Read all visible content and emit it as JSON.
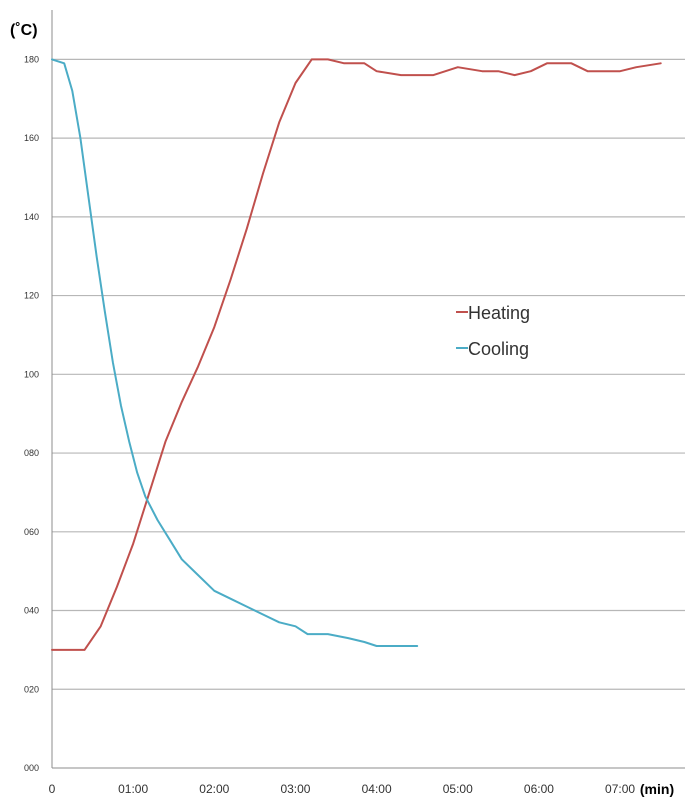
{
  "chart_data": {
    "type": "line",
    "y_unit_label": "(˚C)",
    "x_unit_label": "(min)",
    "ylim": [
      0,
      190
    ],
    "xlim": [
      0,
      7.8
    ],
    "grid": "horizontal",
    "legend_position": "center-right",
    "y_ticks": [
      {
        "value": 0,
        "label": "000"
      },
      {
        "value": 20,
        "label": "020"
      },
      {
        "value": 40,
        "label": "040"
      },
      {
        "value": 60,
        "label": "060"
      },
      {
        "value": 80,
        "label": "080"
      },
      {
        "value": 100,
        "label": "100"
      },
      {
        "value": 120,
        "label": "120"
      },
      {
        "value": 140,
        "label": "140"
      },
      {
        "value": 160,
        "label": "160"
      },
      {
        "value": 180,
        "label": "180"
      }
    ],
    "x_ticks": [
      {
        "value": 0,
        "label": "0"
      },
      {
        "value": 1,
        "label": "01:00"
      },
      {
        "value": 2,
        "label": "02:00"
      },
      {
        "value": 3,
        "label": "03:00"
      },
      {
        "value": 4,
        "label": "04:00"
      },
      {
        "value": 5,
        "label": "05:00"
      },
      {
        "value": 6,
        "label": "06:00"
      },
      {
        "value": 7,
        "label": "07:00"
      }
    ],
    "series": [
      {
        "name": "Heating",
        "color": "#c0504d",
        "points": [
          [
            0,
            30
          ],
          [
            0.4,
            30
          ],
          [
            0.6,
            36
          ],
          [
            0.8,
            46
          ],
          [
            1.0,
            57
          ],
          [
            1.2,
            70
          ],
          [
            1.4,
            83
          ],
          [
            1.6,
            93
          ],
          [
            1.8,
            102
          ],
          [
            2.0,
            112
          ],
          [
            2.2,
            124
          ],
          [
            2.4,
            137
          ],
          [
            2.6,
            151
          ],
          [
            2.8,
            164
          ],
          [
            3.0,
            174
          ],
          [
            3.2,
            180
          ],
          [
            3.4,
            180
          ],
          [
            3.6,
            179
          ],
          [
            3.85,
            179
          ],
          [
            4.0,
            177
          ],
          [
            4.3,
            176
          ],
          [
            4.7,
            176
          ],
          [
            5.0,
            178
          ],
          [
            5.3,
            177
          ],
          [
            5.5,
            177
          ],
          [
            5.7,
            176
          ],
          [
            5.9,
            177
          ],
          [
            6.1,
            179
          ],
          [
            6.4,
            179
          ],
          [
            6.6,
            177
          ],
          [
            7.0,
            177
          ],
          [
            7.2,
            178
          ],
          [
            7.5,
            179
          ]
        ]
      },
      {
        "name": "Cooling",
        "color": "#4bacc6",
        "points": [
          [
            0,
            180
          ],
          [
            0.15,
            179
          ],
          [
            0.25,
            172
          ],
          [
            0.35,
            160
          ],
          [
            0.45,
            145
          ],
          [
            0.55,
            130
          ],
          [
            0.65,
            116
          ],
          [
            0.75,
            103
          ],
          [
            0.85,
            92
          ],
          [
            0.95,
            83
          ],
          [
            1.05,
            75
          ],
          [
            1.15,
            69
          ],
          [
            1.3,
            63
          ],
          [
            1.45,
            58
          ],
          [
            1.6,
            53
          ],
          [
            1.8,
            49
          ],
          [
            2.0,
            45
          ],
          [
            2.2,
            43
          ],
          [
            2.4,
            41
          ],
          [
            2.6,
            39
          ],
          [
            2.8,
            37
          ],
          [
            3.0,
            36
          ],
          [
            3.15,
            34
          ],
          [
            3.4,
            34
          ],
          [
            3.65,
            33
          ],
          [
            3.85,
            32
          ],
          [
            4.0,
            31
          ],
          [
            4.25,
            31
          ],
          [
            4.5,
            31
          ]
        ]
      }
    ]
  }
}
